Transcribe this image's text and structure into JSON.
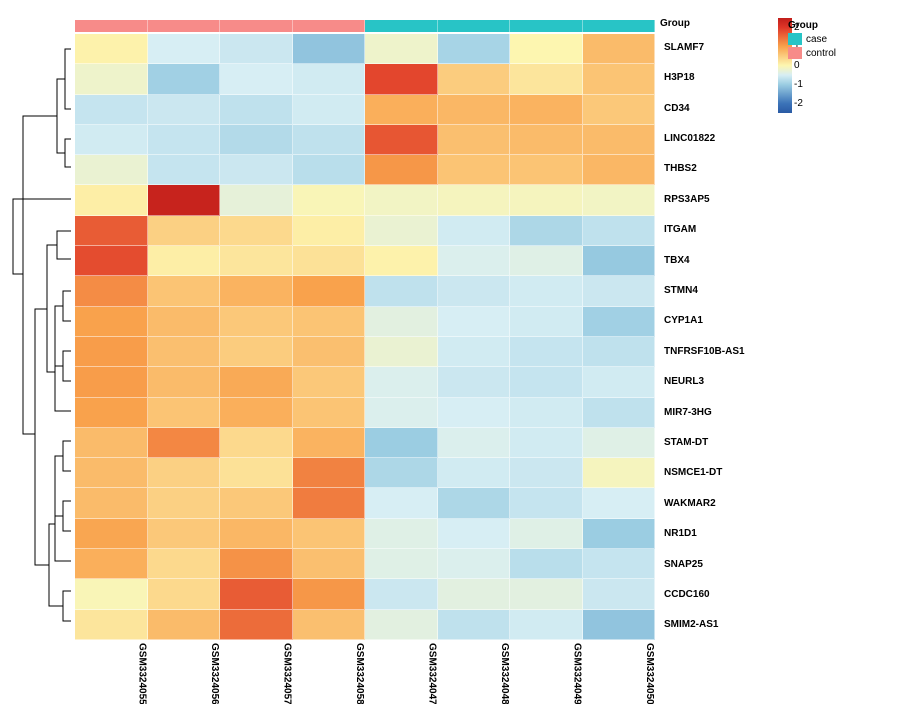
{
  "type": "heatmap",
  "background_color": "#ffffff",
  "cell_border": "rgba(255,255,255,0.5)",
  "colorscale": {
    "min": -2.5,
    "max": 2.5,
    "ticks": [
      2,
      1,
      0,
      -1,
      -2
    ],
    "stops": [
      {
        "v": 2.5,
        "c": "#c11e1a"
      },
      {
        "v": 2,
        "c": "#df3628"
      },
      {
        "v": 1,
        "c": "#f9a24c"
      },
      {
        "v": 0,
        "c": "#fdf6b0"
      },
      {
        "v": -0.5,
        "c": "#d7eef4"
      },
      {
        "v": -1,
        "c": "#9bcde2"
      },
      {
        "v": -2,
        "c": "#3b73b8"
      },
      {
        "v": -2.5,
        "c": "#2a5aa4"
      }
    ]
  },
  "group": {
    "title": "Group",
    "legend": [
      {
        "label": "case",
        "color": "#28c4c6"
      },
      {
        "label": "control",
        "color": "#f78b89"
      }
    ]
  },
  "columns": [
    {
      "id": "GSM3324055",
      "group": "control"
    },
    {
      "id": "GSM3324056",
      "group": "control"
    },
    {
      "id": "GSM3324057",
      "group": "control"
    },
    {
      "id": "GSM3324058",
      "group": "control"
    },
    {
      "id": "GSM3324047",
      "group": "case"
    },
    {
      "id": "GSM3324048",
      "group": "case"
    },
    {
      "id": "GSM3324049",
      "group": "case"
    },
    {
      "id": "GSM3324050",
      "group": "case"
    }
  ],
  "rows": [
    {
      "label": "SLAMF7",
      "values": [
        0.05,
        -0.5,
        -0.6,
        -1.1,
        -0.2,
        -0.9,
        0.0,
        0.7
      ]
    },
    {
      "label": "H3P18",
      "values": [
        -0.2,
        -0.95,
        -0.5,
        -0.55,
        1.85,
        0.5,
        0.2,
        0.6
      ]
    },
    {
      "label": "CD34",
      "values": [
        -0.65,
        -0.6,
        -0.7,
        -0.55,
        0.85,
        0.75,
        0.8,
        0.55
      ]
    },
    {
      "label": "LINC01822",
      "values": [
        -0.55,
        -0.65,
        -0.8,
        -0.7,
        1.7,
        0.65,
        0.7,
        0.7
      ]
    },
    {
      "label": "THBS2",
      "values": [
        -0.25,
        -0.65,
        -0.6,
        -0.75,
        1.1,
        0.6,
        0.6,
        0.75
      ]
    },
    {
      "label": "RPS3AP5",
      "values": [
        0.1,
        2.4,
        -0.3,
        -0.05,
        -0.15,
        -0.1,
        -0.1,
        -0.15
      ]
    },
    {
      "label": "ITGAM",
      "values": [
        1.65,
        0.45,
        0.35,
        0.1,
        -0.25,
        -0.55,
        -0.85,
        -0.7
      ]
    },
    {
      "label": "TBX4",
      "values": [
        1.8,
        0.1,
        0.2,
        0.25,
        0.05,
        -0.45,
        -0.4,
        -1.05
      ]
    },
    {
      "label": "STMN4",
      "values": [
        1.2,
        0.6,
        0.8,
        1.0,
        -0.7,
        -0.6,
        -0.55,
        -0.6
      ]
    },
    {
      "label": "CYP1A1",
      "values": [
        1.0,
        0.7,
        0.55,
        0.6,
        -0.35,
        -0.5,
        -0.55,
        -0.95
      ]
    },
    {
      "label": "TNFRSF10B-AS1",
      "values": [
        1.05,
        0.65,
        0.5,
        0.65,
        -0.25,
        -0.55,
        -0.65,
        -0.7
      ]
    },
    {
      "label": "NEURL3",
      "values": [
        1.05,
        0.7,
        0.9,
        0.55,
        -0.45,
        -0.6,
        -0.65,
        -0.55
      ]
    },
    {
      "label": "MIR7-3HG",
      "values": [
        1.0,
        0.6,
        0.85,
        0.6,
        -0.45,
        -0.5,
        -0.55,
        -0.7
      ]
    },
    {
      "label": "STAM-DT",
      "values": [
        0.7,
        1.25,
        0.35,
        0.8,
        -1.0,
        -0.45,
        -0.55,
        -0.4
      ]
    },
    {
      "label": "NSMCE1-DT",
      "values": [
        0.7,
        0.45,
        0.25,
        1.3,
        -0.85,
        -0.55,
        -0.6,
        -0.1
      ]
    },
    {
      "label": "WAKMAR2",
      "values": [
        0.7,
        0.45,
        0.55,
        1.35,
        -0.5,
        -0.85,
        -0.65,
        -0.5
      ]
    },
    {
      "label": "NR1D1",
      "values": [
        0.95,
        0.55,
        0.75,
        0.6,
        -0.4,
        -0.5,
        -0.4,
        -1.0
      ]
    },
    {
      "label": "SNAP25",
      "values": [
        0.85,
        0.35,
        1.15,
        0.65,
        -0.4,
        -0.45,
        -0.75,
        -0.65
      ]
    },
    {
      "label": "CCDC160",
      "values": [
        -0.05,
        0.35,
        1.65,
        1.1,
        -0.6,
        -0.35,
        -0.35,
        -0.6
      ]
    },
    {
      "label": "SMIM2-AS1",
      "values": [
        0.2,
        0.7,
        1.5,
        0.65,
        -0.35,
        -0.7,
        -0.55,
        -1.1
      ]
    }
  ],
  "dendrogram_rows": {
    "stroke": "#000000",
    "stroke_width": 1,
    "paths": [
      "M66,15 H60 V75 H66",
      "M66,105 H60 V133 H66",
      "M60,45 H52 V119 H60",
      "M66,197 H52 V225 H66",
      "M66,257 H58 V287 H66",
      "M66,317 H58 V347 H66",
      "M58,272 H50 V332 H58",
      "M66,377 H50 V302 H50",
      "M52,211 H42 V338 H50",
      "M66,407 H58 V437 H66",
      "M66,467 H58 V497 H66",
      "M58,422 H50 V482 H58",
      "M66,527 H50 V452",
      "M66,557 H58 V587 H66",
      "M50,490 H44 V572 H58",
      "M42,275 H30 V531 H44",
      "M52,82 H18 V400 H30",
      "M66,165 H8 V240 H18"
    ]
  }
}
